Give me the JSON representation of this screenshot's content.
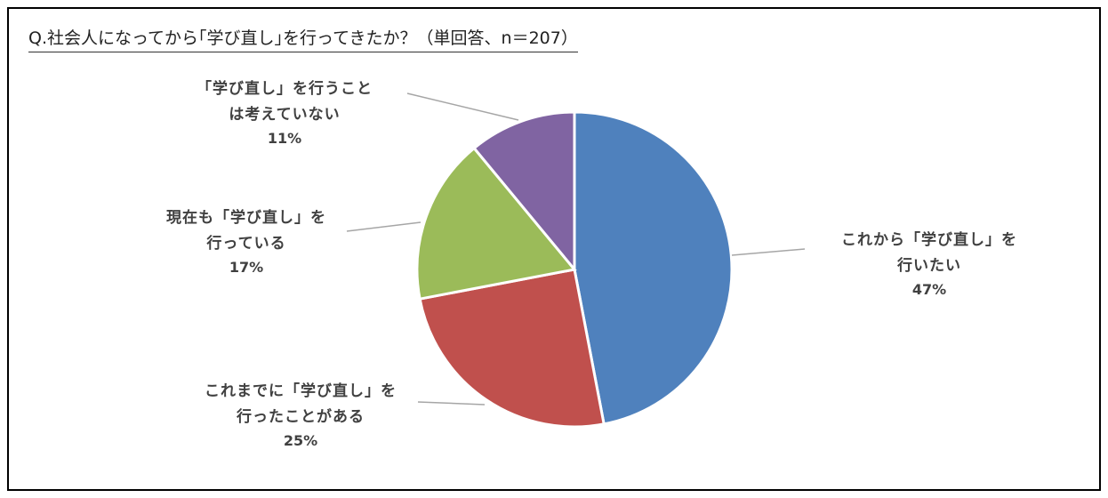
{
  "chart_data": {
    "type": "pie",
    "title": "Q.社会人になってから｢学び直し｣を行ってきたか？（単回答、n＝207）",
    "categories": [
      "これから「学び直し」を行いたい",
      "これまでに「学び直し」を行ったことがある",
      "現在も「学び直し」を行っている",
      "「学び直し」を行うことは考えていない"
    ],
    "values": [
      47,
      25,
      17,
      11
    ],
    "value_labels": [
      "47%",
      "25%",
      "17%",
      "11%"
    ],
    "colors": [
      "#4f81bd",
      "#c0504d",
      "#9bbb59",
      "#8064a2"
    ]
  }
}
